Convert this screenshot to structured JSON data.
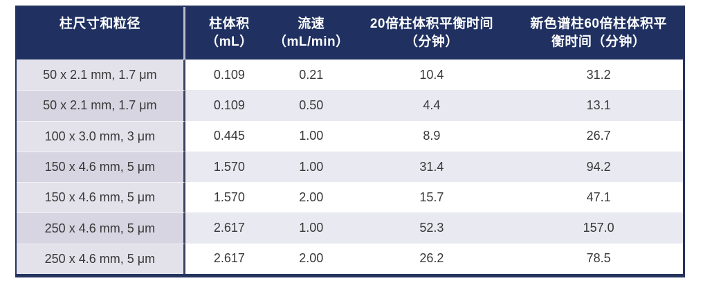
{
  "chart_data": {
    "type": "table",
    "columns": [
      {
        "label": "柱尺寸和粒径",
        "line1": "柱尺寸和粒径",
        "line2": ""
      },
      {
        "label": "柱体积（mL）",
        "line1": "柱体积",
        "line2": "（mL）"
      },
      {
        "label": "流速（mL/min）",
        "line1": "流速",
        "line2": "（mL/min）"
      },
      {
        "label": "20倍柱体积平衡时间（分钟）",
        "line1": "20倍柱体积平衡时间",
        "line2": "（分钟）"
      },
      {
        "label": "新色谱柱60倍柱体积平衡时间（分钟）",
        "line1": "新色谱柱60倍柱体积平",
        "line2": "衡时间（分钟）"
      }
    ],
    "rows": [
      [
        "50 x 2.1 mm, 1.7 μm",
        "0.109",
        "0.21",
        "10.4",
        "31.2"
      ],
      [
        "50 x 2.1 mm, 1.7 μm",
        "0.109",
        "0.50",
        "4.4",
        "13.1"
      ],
      [
        "100 x 3.0 mm, 3 μm",
        "0.445",
        "1.00",
        "8.9",
        "26.7"
      ],
      [
        "150 x 4.6 mm, 5 μm",
        "1.570",
        "1.00",
        "31.4",
        "94.2"
      ],
      [
        "150 x 4.6 mm, 5 μm",
        "1.570",
        "2.00",
        "15.7",
        "47.1"
      ],
      [
        "250 x 4.6 mm, 5 μm",
        "2.617",
        "1.00",
        "52.3",
        "157.0"
      ],
      [
        "250 x 4.6 mm, 5 μm",
        "2.617",
        "2.00",
        "26.2",
        "78.5"
      ]
    ]
  },
  "colors": {
    "header_bg": "#1f3061",
    "header_text": "#ffffff",
    "border": "#25345f",
    "col1_divider": "#3c415e",
    "stripe_even": "#e9e9f1",
    "col1_odd": "#e3e2eb",
    "col1_even": "#d6d5e1",
    "body_text": "#383838"
  }
}
